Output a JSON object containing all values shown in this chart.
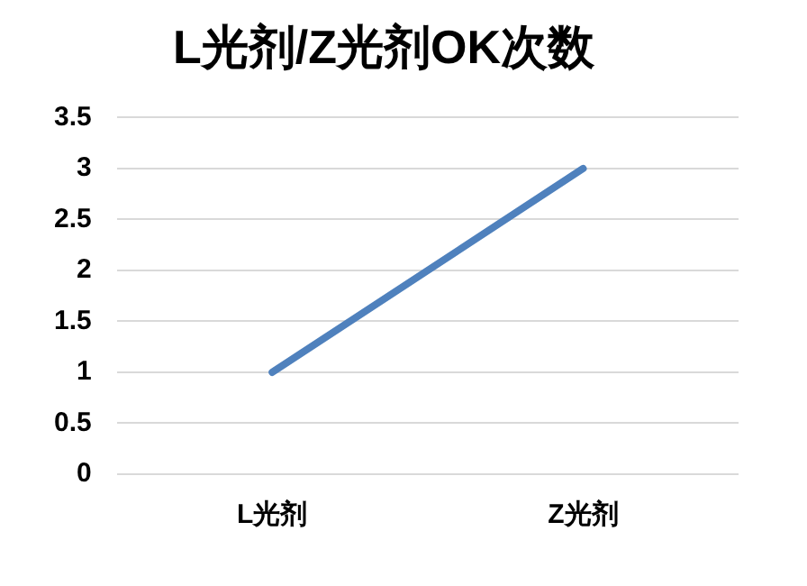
{
  "chart_data": {
    "type": "line",
    "title": "L光剂/Z光剂OK次数",
    "categories": [
      "L光剂",
      "Z光剂"
    ],
    "series": [
      {
        "color": "#4f81bd",
        "values": [
          1,
          3
        ]
      }
    ],
    "ylim": [
      0,
      3.5
    ],
    "yticks": [
      0,
      0.5,
      1,
      1.5,
      2,
      2.5,
      3,
      3.5
    ],
    "grid": "y",
    "legend": false,
    "marker": "none",
    "line_style": "solid"
  }
}
